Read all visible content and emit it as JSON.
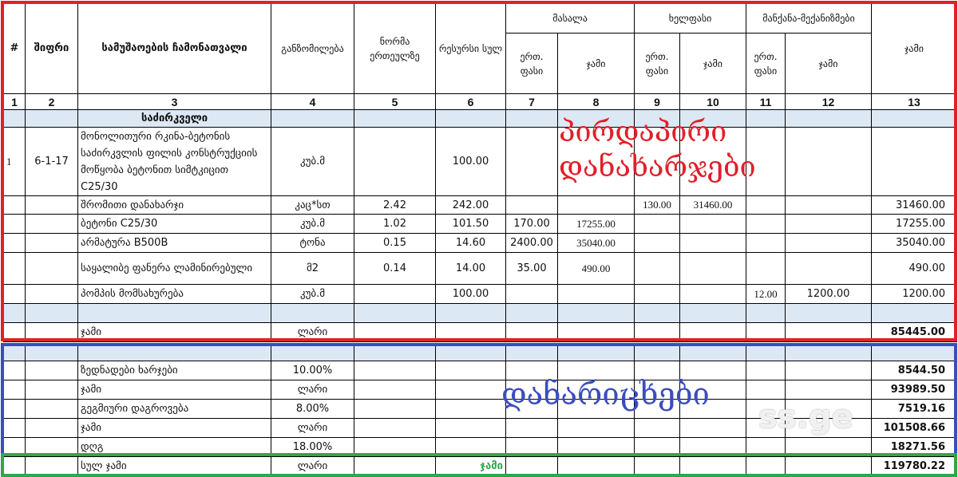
{
  "header": {
    "num": "#",
    "code": "შიფრი",
    "desc": "სამუშაოების ჩამონათვალი",
    "unit": "განზომილება",
    "norm": "ნორმა ერთეულზე",
    "resource": "რესურსი სულ",
    "material": "მასალა",
    "labor": "ხელფასი",
    "machinery": "მანქანა-მექანიზმები",
    "unit_price": "ერთ. ფასი",
    "sum": "ჯამი",
    "total": "ჯამი",
    "col_numbers": [
      "1",
      "2",
      "3",
      "4",
      "5",
      "6",
      "7",
      "8",
      "9",
      "10",
      "11",
      "12",
      "13"
    ]
  },
  "rows": [
    {
      "type": "section",
      "desc": "საძირკველი"
    },
    {
      "type": "item",
      "num": "1",
      "code": "6-1-17",
      "desc": "მონოლითური რკინა-ბეტონის საძირკვლის ფილის კონსტრუქციის მოწყობა ბეტონით სიმტკიცით C25/30",
      "unit": "კუბ.მ",
      "resource": "100.00"
    },
    {
      "type": "line",
      "desc": "შრომითი დანახარჯი",
      "unit": "კაც*სთ",
      "norm": "2.42",
      "resource": "242.00",
      "lab_unit": "130.00",
      "lab_total": "31460.00",
      "total": "31460.00"
    },
    {
      "type": "line",
      "desc": "ბეტონი  C25/30",
      "unit": "კუბ.მ",
      "norm": "1.02",
      "resource": "101.50",
      "mat_unit": "170.00",
      "mat_total": "17255.00",
      "total": "17255.00"
    },
    {
      "type": "line",
      "desc": "არმატურა B500B",
      "unit": "ტონა",
      "norm": "0.15",
      "resource": "14.60",
      "mat_unit": "2400.00",
      "mat_total": "35040.00",
      "total": "35040.00"
    },
    {
      "type": "line",
      "desc": "საყალიბე ფანერა ლამინირებული",
      "unit": "მ2",
      "norm": "0.14",
      "resource": "14.00",
      "mat_unit": "35.00",
      "mat_total": "490.00",
      "total": "490.00"
    },
    {
      "type": "line",
      "desc": "პომპის მომსახურება",
      "unit": "კუბ.მ",
      "resource": "100.00",
      "mach_unit": "12.00",
      "mach_total": "1200.00",
      "total": "1200.00"
    },
    {
      "type": "blank"
    },
    {
      "type": "sum",
      "desc": "ჯამი",
      "unit": "ლარი",
      "total": "85445.00"
    },
    {
      "type": "gap"
    },
    {
      "type": "blank"
    },
    {
      "type": "sum",
      "desc": "ზედნადები ხარჯები",
      "unit": "10.00%",
      "total": "8544.50"
    },
    {
      "type": "sum",
      "desc": "ჯამი",
      "unit": "ლარი",
      "total": "93989.50"
    },
    {
      "type": "sum",
      "desc": "გეგმიური დაგროვება",
      "unit": "8.00%",
      "total": "7519.16"
    },
    {
      "type": "sum",
      "desc": "ჯამი",
      "unit": "ლარი",
      "total": "101508.66"
    },
    {
      "type": "sum",
      "desc": "დღგ",
      "unit": "18.00%",
      "total": "18271.56"
    },
    {
      "type": "sum",
      "desc": "სულ ჯამი",
      "unit": "ლარი",
      "resource": "ჯამი",
      "total": "119780.22"
    }
  ],
  "annotations": {
    "direct_costs": "პირდაპირი დანახარჯები",
    "overheads": "დანარიცხები",
    "grand_total": "ჯამი",
    "watermark": "ss.ge"
  },
  "colors": {
    "direct": "#e0202a",
    "overheads": "#3a4dbf",
    "total": "#2ea84a",
    "section_bg": "#dce8f4"
  }
}
